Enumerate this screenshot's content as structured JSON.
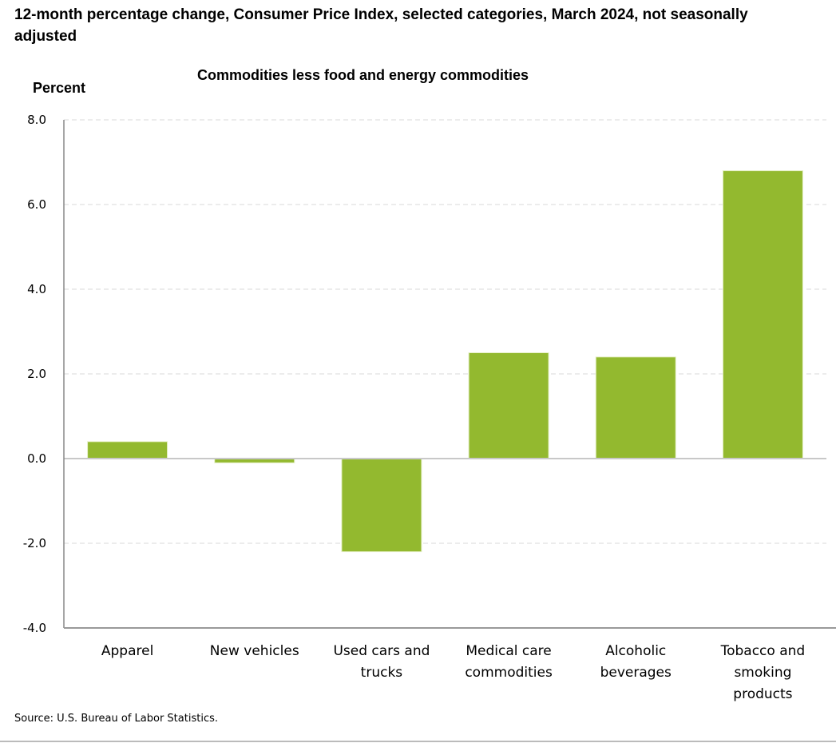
{
  "chart_data": {
    "type": "bar",
    "title": "12-month percentage change, Consumer Price Index, selected categories, March 2024, not seasonally adjusted",
    "subtitle": "Commodities less food and energy commodities",
    "ylabel": "Percent",
    "xlabel": "",
    "ylim": [
      -4.0,
      8.0
    ],
    "yticks": [
      "8.0",
      "6.0",
      "4.0",
      "2.0",
      "0.0",
      "-2.0",
      "-4.0"
    ],
    "grid": true,
    "categories": [
      [
        "Apparel"
      ],
      [
        "New vehicles"
      ],
      [
        "Used cars and",
        "trucks"
      ],
      [
        "Medical care",
        "commodities"
      ],
      [
        "Alcoholic",
        "beverages"
      ],
      [
        "Tobacco and",
        "smoking",
        "products"
      ]
    ],
    "values": [
      0.4,
      -0.1,
      -2.2,
      2.5,
      2.4,
      6.8
    ],
    "bar_color": "#93b92f",
    "source": "Source: U.S. Bureau of Labor Statistics."
  }
}
